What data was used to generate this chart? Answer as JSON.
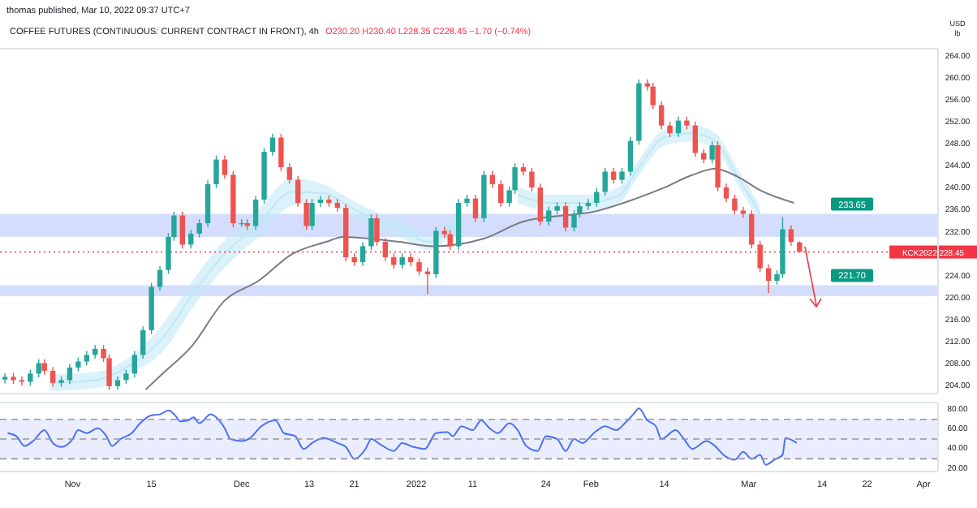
{
  "chart_data": [
    {
      "type": "candlestick",
      "subtitle": "thomas published, Mar 10, 2022 09:37 UTC+7",
      "title": "COFFEE FUTURES (CONTINUOUS: CURRENT CONTRACT IN FRONT), 4h",
      "annotations": [
        "O230.20 H230.40 L228.35 C228.45 −1.70 (−0.74%)",
        "USD",
        "lb"
      ],
      "x": [
        "2021-10-20T00:00",
        "2021-10-21T12:00",
        "2021-10-23T00:00",
        "2021-10-24T12:00",
        "2021-10-26T00:00",
        "2021-10-27T00:00",
        "2021-10-28T12:00",
        "2021-10-30T00:00",
        "2021-10-31T12:00",
        "2021-11-02T00:00",
        "2021-11-03T12:00",
        "2021-11-05T00:00",
        "2021-11-06T12:00",
        "2021-11-07T12:00",
        "2021-11-09T00:00",
        "2021-11-10T12:00",
        "2021-11-12T00:00",
        "2021-11-13T12:00",
        "2021-11-15T00:00",
        "2021-11-16T12:00",
        "2021-11-18T00:00",
        "2021-11-19T00:00",
        "2021-11-20T12:00",
        "2021-11-22T00:00",
        "2021-11-23T12:00",
        "2021-11-25T00:00",
        "2021-11-26T12:00",
        "2021-11-28T00:00",
        "2021-11-29T12:00",
        "2021-12-01T00:00",
        "2021-12-02T00:00",
        "2021-12-03T12:00",
        "2021-12-05T00:00",
        "2021-12-06T12:00",
        "2021-12-08T00:00",
        "2021-12-09T12:00",
        "2021-12-11T00:00",
        "2021-12-12T12:00",
        "2021-12-13T12:00",
        "2021-12-15T00:00",
        "2021-12-16T12:00",
        "2021-12-18T00:00",
        "2021-12-19T12:00",
        "2021-12-21T00:00",
        "2021-12-22T12:00",
        "2021-12-24T00:00",
        "2021-12-25T00:00",
        "2021-12-26T12:00",
        "2021-12-28T00:00",
        "2021-12-29T12:00",
        "2021-12-31T00:00",
        "2022-01-01T12:00",
        "2022-01-03T00:00",
        "2022-01-04T12:00",
        "2022-01-06T00:00",
        "2022-01-07T00:00",
        "2022-01-08T12:00",
        "2022-01-10T00:00",
        "2022-01-11T12:00",
        "2022-01-13T00:00",
        "2022-01-14T12:00",
        "2022-01-16T00:00",
        "2022-01-17T12:00",
        "2022-01-18T12:00",
        "2022-01-20T00:00",
        "2022-01-21T12:00",
        "2022-01-23T00:00",
        "2022-01-24T12:00",
        "2022-01-26T00:00",
        "2022-01-27T12:00",
        "2022-01-29T00:00",
        "2022-01-30T00:00",
        "2022-01-31T12:00",
        "2022-02-02T00:00",
        "2022-02-03T12:00",
        "2022-02-05T00:00",
        "2022-02-06T12:00",
        "2022-02-08T00:00",
        "2022-02-09T12:00",
        "2022-02-11T00:00",
        "2022-02-12T00:00",
        "2022-02-13T12:00",
        "2022-02-15T00:00",
        "2022-02-16T12:00",
        "2022-02-18T00:00",
        "2022-02-19T12:00",
        "2022-02-21T00:00",
        "2022-02-22T12:00",
        "2022-02-23T12:00",
        "2022-02-25T00:00",
        "2022-02-26T12:00",
        "2022-02-28T00:00",
        "2022-03-01T12:00",
        "2022-03-03T00:00",
        "2022-03-04T12:00",
        "2022-03-06T00:00",
        "2022-03-07T00:00",
        "2022-03-08T12:00",
        "2022-03-10T00:00"
      ],
      "ohlc": [
        [
          205.2,
          206.4,
          204.5,
          205.7
        ],
        [
          205.7,
          206.4,
          204.4,
          205.1
        ],
        [
          205.1,
          205.8,
          204.1,
          204.8
        ],
        [
          204.8,
          207.0,
          204.1,
          206.3
        ],
        [
          206.3,
          208.9,
          205.6,
          208.2
        ],
        [
          208.2,
          208.9,
          206.1,
          206.8
        ],
        [
          206.8,
          207.5,
          203.9,
          204.6
        ],
        [
          204.6,
          205.8,
          203.9,
          205.1
        ],
        [
          205.1,
          208.1,
          204.4,
          207.4
        ],
        [
          207.4,
          209.2,
          206.7,
          208.5
        ],
        [
          208.5,
          210.4,
          207.8,
          209.7
        ],
        [
          209.7,
          211.5,
          209.0,
          210.8
        ],
        [
          210.8,
          211.5,
          208.4,
          209.1
        ],
        [
          209.1,
          209.8,
          203.3,
          204.0
        ],
        [
          204.0,
          205.8,
          203.3,
          205.1
        ],
        [
          205.1,
          207.0,
          204.4,
          206.3
        ],
        [
          206.3,
          210.4,
          205.6,
          209.7
        ],
        [
          209.7,
          214.9,
          209.0,
          214.2
        ],
        [
          214.2,
          222.8,
          213.5,
          222.1
        ],
        [
          222.1,
          225.9,
          221.4,
          225.2
        ],
        [
          225.2,
          231.9,
          224.5,
          231.2
        ],
        [
          231.2,
          235.8,
          230.5,
          235.1
        ],
        [
          235.1,
          235.8,
          229.1,
          229.8
        ],
        [
          229.8,
          232.5,
          229.1,
          231.8
        ],
        [
          231.8,
          234.4,
          231.1,
          233.7
        ],
        [
          233.7,
          241.5,
          233.0,
          240.8
        ],
        [
          240.8,
          246.0,
          240.1,
          245.3
        ],
        [
          245.3,
          246.0,
          241.8,
          242.5
        ],
        [
          242.5,
          243.2,
          233.0,
          233.7
        ],
        [
          233.7,
          234.4,
          233.0,
          233.7
        ],
        [
          233.7,
          234.4,
          232.5,
          233.2
        ],
        [
          233.2,
          238.7,
          232.5,
          238.0
        ],
        [
          238.0,
          247.4,
          237.3,
          246.7
        ],
        [
          246.7,
          250.0,
          246.0,
          249.3
        ],
        [
          249.3,
          250.0,
          243.2,
          243.9
        ],
        [
          243.9,
          244.6,
          240.9,
          241.6
        ],
        [
          241.6,
          242.3,
          236.7,
          237.4
        ],
        [
          237.4,
          238.1,
          232.5,
          233.2
        ],
        [
          233.2,
          238.1,
          232.5,
          237.4
        ],
        [
          237.4,
          238.7,
          236.7,
          238.0
        ],
        [
          238.0,
          238.7,
          236.7,
          237.4
        ],
        [
          237.4,
          238.1,
          235.8,
          236.5
        ],
        [
          236.5,
          237.2,
          226.8,
          227.5
        ],
        [
          227.5,
          228.2,
          225.9,
          226.6
        ],
        [
          226.6,
          230.2,
          225.9,
          229.5
        ],
        [
          229.5,
          235.3,
          228.8,
          234.6
        ],
        [
          234.6,
          235.3,
          229.6,
          230.3
        ],
        [
          230.3,
          231.0,
          226.8,
          227.5
        ],
        [
          227.5,
          228.2,
          225.4,
          226.1
        ],
        [
          226.1,
          228.2,
          225.4,
          227.5
        ],
        [
          227.5,
          228.2,
          225.9,
          226.6
        ],
        [
          226.6,
          227.3,
          224.2,
          224.9
        ],
        [
          224.9,
          225.6,
          220.8,
          224.4
        ],
        [
          224.4,
          233.0,
          223.7,
          232.3
        ],
        [
          232.3,
          233.0,
          231.0,
          231.7
        ],
        [
          231.7,
          232.4,
          228.8,
          229.5
        ],
        [
          229.5,
          238.1,
          228.8,
          237.4
        ],
        [
          237.4,
          238.9,
          236.7,
          238.2
        ],
        [
          238.2,
          238.9,
          233.9,
          234.6
        ],
        [
          234.6,
          243.2,
          233.9,
          242.5
        ],
        [
          242.5,
          243.2,
          240.1,
          240.8
        ],
        [
          240.8,
          241.5,
          236.7,
          237.4
        ],
        [
          237.4,
          240.4,
          236.7,
          239.7
        ],
        [
          239.7,
          244.6,
          239.0,
          243.9
        ],
        [
          243.9,
          244.6,
          242.4,
          243.1
        ],
        [
          243.1,
          243.8,
          239.5,
          240.2
        ],
        [
          240.2,
          240.9,
          233.3,
          234.0
        ],
        [
          234.0,
          236.7,
          233.3,
          236.0
        ],
        [
          236.0,
          237.5,
          235.3,
          236.8
        ],
        [
          236.8,
          237.5,
          232.2,
          232.9
        ],
        [
          232.9,
          236.1,
          232.2,
          235.4
        ],
        [
          235.4,
          237.5,
          234.7,
          236.8
        ],
        [
          236.8,
          238.1,
          236.1,
          237.4
        ],
        [
          237.4,
          240.1,
          236.7,
          239.4
        ],
        [
          239.4,
          243.8,
          238.7,
          243.1
        ],
        [
          243.1,
          243.8,
          240.9,
          241.6
        ],
        [
          241.6,
          243.8,
          240.9,
          243.1
        ],
        [
          243.1,
          249.4,
          242.4,
          248.7
        ],
        [
          248.7,
          259.9,
          248.0,
          259.2
        ],
        [
          259.2,
          259.9,
          257.9,
          258.6
        ],
        [
          258.6,
          259.3,
          254.5,
          255.2
        ],
        [
          255.2,
          255.9,
          250.8,
          251.5
        ],
        [
          251.5,
          252.2,
          249.4,
          250.1
        ],
        [
          250.1,
          253.1,
          249.4,
          252.4
        ],
        [
          252.4,
          253.1,
          250.8,
          251.5
        ],
        [
          251.5,
          252.2,
          245.8,
          246.5
        ],
        [
          246.5,
          247.2,
          244.6,
          245.3
        ],
        [
          245.3,
          248.6,
          244.6,
          247.9
        ],
        [
          247.9,
          248.6,
          239.5,
          240.2
        ],
        [
          240.2,
          240.9,
          237.5,
          238.2
        ],
        [
          238.2,
          238.9,
          235.3,
          236.0
        ],
        [
          236.0,
          236.7,
          234.7,
          235.4
        ],
        [
          235.4,
          236.1,
          229.1,
          229.8
        ],
        [
          229.8,
          230.5,
          224.8,
          225.5
        ],
        [
          225.5,
          226.2,
          221.0,
          223.2
        ],
        [
          223.2,
          225.1,
          222.5,
          224.4
        ],
        [
          224.4,
          234.8,
          223.7,
          232.6
        ],
        [
          232.6,
          233.3,
          229.6,
          230.3
        ],
        [
          230.2,
          230.4,
          228.35,
          228.45
        ]
      ],
      "series": [
        {
          "type": "line",
          "color": "#bfe8f6",
          "x": [
            "2021-10-28",
            "2021-11-05",
            "2021-11-11",
            "2021-11-17",
            "2021-11-23",
            "2021-11-28",
            "2021-12-04",
            "2021-12-10",
            "2021-12-16",
            "2021-12-19",
            "2021-12-24",
            "2021-12-30",
            "2022-01-03",
            "2022-01-08",
            "2022-01-13",
            "2022-01-19",
            "2022-01-25",
            "2022-01-31",
            "2022-02-06",
            "2022-02-09",
            "2022-02-14",
            "2022-02-19",
            "2022-02-23",
            "2022-02-27",
            "2022-03-03"
          ],
          "values": [
            204.6,
            205.1,
            207.7,
            212.8,
            221.8,
            228.1,
            233.7,
            239.4,
            239.1,
            237.4,
            234.6,
            232.3,
            230.3,
            233.7,
            null,
            238.8,
            237.4,
            237.4,
            238.8,
            243.1,
            249.3,
            250.1,
            248.7,
            242.2,
            235.4
          ],
          "upper": [
            206.1,
            206.6,
            209.2,
            215.3,
            224.3,
            230.6,
            236.2,
            241.9,
            240.6,
            238.9,
            236.1,
            233.8,
            231.8,
            235.2,
            null,
            240.3,
            238.9,
            238.9,
            240.3,
            244.6,
            250.8,
            251.6,
            250.2,
            243.7,
            236.9
          ],
          "lower": [
            203.1,
            203.6,
            206.2,
            210.3,
            219.3,
            225.6,
            231.2,
            236.9,
            237.6,
            235.9,
            233.1,
            230.8,
            228.8,
            232.2,
            null,
            237.3,
            235.9,
            235.9,
            237.3,
            241.6,
            247.8,
            248.6,
            247.2,
            240.7,
            233.9
          ]
        },
        {
          "type": "line",
          "color": "#787b86",
          "x": [
            "2021-11-14",
            "2021-11-17",
            "2021-11-22",
            "2021-11-28",
            "2021-12-04",
            "2021-12-10",
            "2021-12-16",
            "2021-12-19",
            "2021-12-29",
            "2022-01-04",
            "2022-01-13",
            "2022-01-20",
            "2022-01-27",
            "2022-02-01",
            "2022-02-09",
            "2022-02-14",
            "2022-02-19",
            "2022-02-23",
            "2022-02-27",
            "2022-03-03",
            "2022-03-09"
          ],
          "values": [
            203.4,
            206.3,
            211.1,
            219.6,
            223.2,
            228.1,
            230.3,
            231.2,
            230.3,
            229.5,
            230.9,
            234.0,
            235.1,
            235.7,
            238.2,
            240.2,
            242.5,
            243.6,
            242.2,
            239.7,
            237.4
          ]
        }
      ],
      "xlim": [
        "2021-10-19T03:00",
        "2022-04-03T14:00"
      ],
      "ylim": [
        202.8,
        265.5
      ],
      "yticks": [
        {
          "value": 204,
          "label": "204.00"
        },
        {
          "value": 208,
          "label": "208.00"
        },
        {
          "value": 212,
          "label": "212.00"
        },
        {
          "value": 216,
          "label": "216.00"
        },
        {
          "value": 220,
          "label": "220.00"
        },
        {
          "value": 224,
          "label": "224.00"
        },
        {
          "value": 232,
          "label": "232.00"
        },
        {
          "value": 236,
          "label": "236.00"
        },
        {
          "value": 240,
          "label": "240.00"
        },
        {
          "value": 244,
          "label": "244.00"
        },
        {
          "value": 248,
          "label": "248.00"
        },
        {
          "value": 252,
          "label": "252.00"
        },
        {
          "value": 256,
          "label": "256.00"
        },
        {
          "value": 260,
          "label": "260.00"
        },
        {
          "value": 264,
          "label": "264.00"
        }
      ],
      "tick_labels": "y",
      "bands": [
        {
          "axis": "y",
          "from": 231.2,
          "to": 235.4,
          "label": "233.65",
          "color": "#c9d6fb"
        },
        {
          "axis": "y",
          "from": 220.4,
          "to": 222.4,
          "label": "221.70",
          "color": "#c9d6fb"
        }
      ],
      "ref_lines": [
        {
          "axis": "y",
          "value": 228.45,
          "label": "KCK2022 228.45",
          "color": "#f23645",
          "line_style": "dotted"
        }
      ]
    },
    {
      "type": "line",
      "series": [
        {
          "color": "#4d6ff2",
          "x": [
            "2021-10-20T12:00",
            "2021-10-22T00:00",
            "2021-10-23T12:00",
            "2021-10-25T00:00",
            "2021-10-27T00:00",
            "2021-10-28T12:00",
            "2021-10-30T00:00",
            "2021-11-01T00:00",
            "2021-11-02T00:00",
            "2021-11-03T12:00",
            "2021-11-05T12:00",
            "2021-11-07T00:00",
            "2021-11-08T00:00",
            "2021-11-09T12:00",
            "2021-11-11T12:00",
            "2021-11-13T00:00",
            "2021-11-15T00:00",
            "2021-11-16T12:00",
            "2021-11-18T00:00",
            "2021-11-19T12:00",
            "2021-11-20T00:00",
            "2021-11-21T12:00",
            "2021-11-22T12:00",
            "2021-11-23T12:00",
            "2021-11-25T12:00",
            "2021-11-27T00:00",
            "2021-11-28T00:00",
            "2021-11-29T00:00",
            "2021-12-01T00:00",
            "2021-12-02T12:00",
            "2021-12-04T12:00",
            "2021-12-07T00:00",
            "2021-12-08T12:00",
            "2021-12-10T12:00",
            "2021-12-12T00:00",
            "2021-12-13T12:00",
            "2021-12-15T12:00",
            "2021-12-18T00:00",
            "2021-12-19T12:00",
            "2021-12-21T00:00",
            "2021-12-23T00:00",
            "2021-12-24T00:00",
            "2021-12-25T12:00",
            "2021-12-28T00:00",
            "2021-12-29T12:00",
            "2021-12-31T12:00",
            "2022-01-02T12:00",
            "2022-01-04T12:00",
            "2022-01-06T12:00",
            "2022-01-07T12:00",
            "2022-01-09T00:00",
            "2022-01-11T00:00",
            "2022-01-12T12:00",
            "2022-01-14T00:00",
            "2022-01-15T12:00",
            "2022-01-17T12:00",
            "2022-01-19T00:00",
            "2022-01-20T12:00",
            "2022-01-22T12:00",
            "2022-01-24T00:00",
            "2022-01-26T00:00",
            "2022-01-27T12:00",
            "2022-01-29T00:00",
            "2022-01-30T12:00",
            "2022-02-01T12:00",
            "2022-02-03T12:00",
            "2022-02-05T12:00",
            "2022-02-07T00:00",
            "2022-02-08T12:00",
            "2022-02-09T12:00",
            "2022-02-11T00:00",
            "2022-02-12T12:00",
            "2022-02-13T12:00",
            "2022-02-16T00:00",
            "2022-02-17T12:00",
            "2022-02-19T00:00",
            "2022-02-21T12:00",
            "2022-02-23T00:00",
            "2022-02-24T12:00",
            "2022-02-26T12:00",
            "2022-02-28T00:00",
            "2022-03-01T12:00",
            "2022-03-03T00:00",
            "2022-03-04T00:00",
            "2022-03-05T12:00",
            "2022-03-07T00:00",
            "2022-03-07T12:00",
            "2022-03-09T12:00"
          ],
          "values": [
            56,
            53,
            43,
            48,
            59,
            46,
            42,
            50,
            59,
            56,
            61,
            53,
            43,
            50,
            56,
            66,
            74,
            75,
            79,
            72,
            68,
            69,
            72,
            66,
            75,
            69,
            61,
            50,
            48,
            51,
            63,
            69,
            56,
            53,
            40,
            46,
            51,
            46,
            42,
            30,
            40,
            50,
            45,
            38,
            46,
            42,
            40,
            56,
            57,
            53,
            63,
            59,
            69,
            61,
            56,
            66,
            59,
            43,
            38,
            53,
            50,
            38,
            50,
            46,
            56,
            63,
            59,
            66,
            75,
            81,
            69,
            63,
            50,
            59,
            50,
            40,
            48,
            43,
            34,
            29,
            37,
            30,
            34,
            24,
            29,
            34,
            51,
            46
          ]
        }
      ],
      "xlim": [
        "2021-10-19T03:00",
        "2022-04-03T14:00"
      ],
      "ylim": [
        18,
        87
      ],
      "yticks": [
        {
          "value": 80,
          "label": "80.00"
        },
        {
          "value": 60,
          "label": "60.00"
        },
        {
          "value": 40,
          "label": "40.00"
        },
        {
          "value": 20,
          "label": "20.00"
        }
      ],
      "xticks": [
        {
          "value": "2021-11-01",
          "label": "Nov"
        },
        {
          "value": "2021-11-15",
          "label": "15"
        },
        {
          "value": "2021-12-01",
          "label": "Dec"
        },
        {
          "value": "2021-12-13",
          "label": "13"
        },
        {
          "value": "2021-12-21",
          "label": "21"
        },
        {
          "value": "2022-01-01",
          "label": "2022"
        },
        {
          "value": "2022-01-11",
          "label": "11"
        },
        {
          "value": "2022-01-24",
          "label": "24"
        },
        {
          "value": "2022-02-01",
          "label": "Feb"
        },
        {
          "value": "2022-02-14",
          "label": "14"
        },
        {
          "value": "2022-03-01",
          "label": "Mar"
        },
        {
          "value": "2022-03-14",
          "label": "14"
        },
        {
          "value": "2022-03-22",
          "label": "22"
        },
        {
          "value": "2022-04-01",
          "label": "Apr"
        }
      ],
      "bands": [
        {
          "axis": "y",
          "from": 30,
          "to": 70,
          "color": "#e3e8fc"
        }
      ],
      "ref_lines": [
        {
          "axis": "y",
          "value": 70,
          "line_style": "dashed",
          "color": "#9598a1"
        },
        {
          "axis": "y",
          "value": 50,
          "line_style": "dashed",
          "color": "#9598a1"
        },
        {
          "axis": "y",
          "value": 30,
          "line_style": "dashed",
          "color": "#9598a1"
        }
      ]
    }
  ]
}
